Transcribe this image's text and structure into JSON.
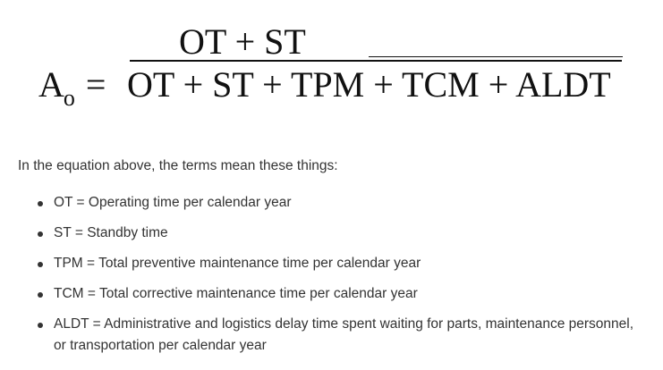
{
  "equation": {
    "lhs_symbol": "A",
    "lhs_subscript": "o",
    "equals": "=",
    "numerator": "OT + ST",
    "denominator": "OT + ST + TPM + TCM + ALDT"
  },
  "intro_text": "In the equation above, the terms mean these things:",
  "terms": [
    "OT = Operating time per calendar year",
    "ST = Standby time",
    "TPM = Total preventive maintenance time per calendar year",
    "TCM = Total corrective maintenance time per calendar year",
    "ALDT = Administrative and logistics delay time spent waiting for parts, maintenance personnel, or transportation per calendar year"
  ]
}
